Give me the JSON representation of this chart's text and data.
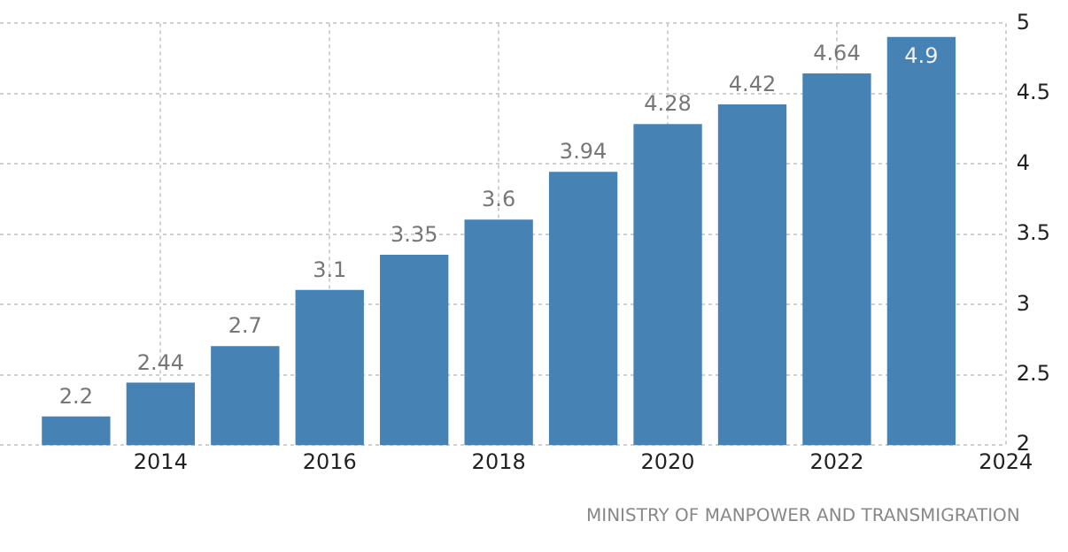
{
  "chart_data": {
    "type": "bar",
    "x": [
      2013,
      2014,
      2015,
      2016,
      2017,
      2018,
      2019,
      2020,
      2021,
      2022,
      2023
    ],
    "values": [
      2.2,
      2.44,
      2.7,
      3.1,
      3.35,
      3.6,
      3.94,
      4.28,
      4.42,
      4.64,
      4.9
    ],
    "color": "#4682b4",
    "data_labels": true,
    "xlim": [
      2012.1,
      2024
    ],
    "xticks": [
      2014,
      2016,
      2018,
      2020,
      2022,
      2024
    ],
    "ylim": [
      2,
      5
    ],
    "yticks": [
      2,
      2.5,
      3,
      3.5,
      4,
      4.5,
      5
    ],
    "grid": true,
    "legend": false,
    "annotations": [
      "MINISTRY OF MANPOWER AND TRANSMIGRATION"
    ]
  }
}
